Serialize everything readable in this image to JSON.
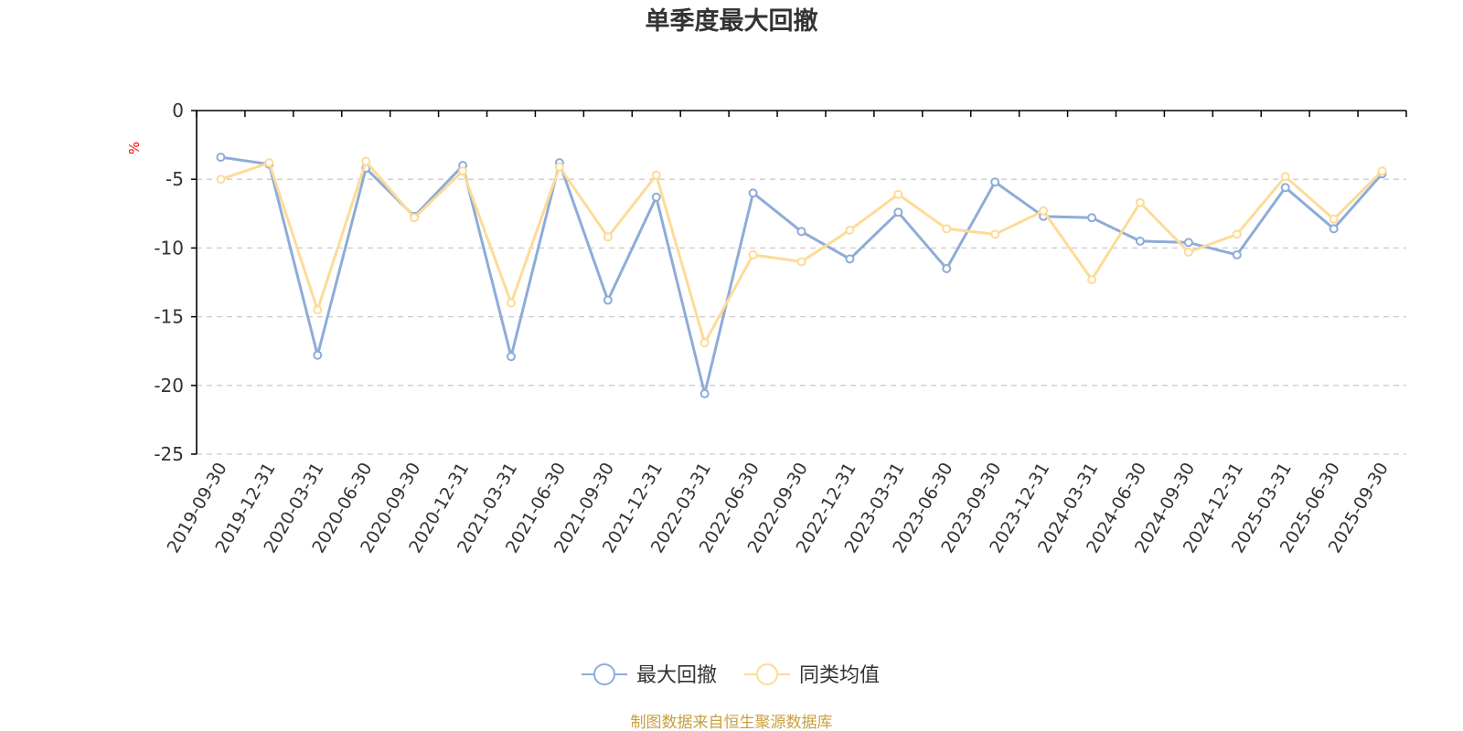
{
  "chart_data": {
    "type": "line",
    "title": "单季度最大回撤",
    "ylabel": "%",
    "ylim": [
      -25,
      0
    ],
    "yticks": [
      0,
      -5,
      -10,
      -15,
      -20,
      -25
    ],
    "grid": true,
    "legend_position": "bottom",
    "categories": [
      "2019-09-30",
      "2019-12-31",
      "2020-03-31",
      "2020-06-30",
      "2020-09-30",
      "2020-12-31",
      "2021-03-31",
      "2021-06-30",
      "2021-09-30",
      "2021-12-31",
      "2022-03-31",
      "2022-06-30",
      "2022-09-30",
      "2022-12-31",
      "2023-03-31",
      "2023-06-30",
      "2023-09-30",
      "2023-12-31",
      "2024-03-31",
      "2024-06-30",
      "2024-09-30",
      "2024-12-31",
      "2025-03-31",
      "2025-06-30",
      "2025-09-30"
    ],
    "series": [
      {
        "name": "最大回撤",
        "color": "#8eacd8",
        "values": [
          -3.4,
          -3.9,
          -17.8,
          -4.2,
          -7.7,
          -4.0,
          -17.9,
          -3.8,
          -13.8,
          -6.3,
          -20.6,
          -6.0,
          -8.8,
          -10.8,
          -7.4,
          -11.5,
          -5.2,
          -7.7,
          -7.8,
          -9.5,
          -9.6,
          -10.5,
          -5.6,
          -8.6,
          -4.6
        ]
      },
      {
        "name": "同类均值",
        "color": "#fddb98",
        "values": [
          -5.0,
          -3.8,
          -14.5,
          -3.7,
          -7.8,
          -4.4,
          -14.0,
          -4.1,
          -9.2,
          -4.7,
          -16.9,
          -10.5,
          -11.0,
          -8.7,
          -6.1,
          -8.6,
          -9.0,
          -7.3,
          -12.3,
          -6.7,
          -10.3,
          -9.0,
          -4.8,
          -7.9,
          -4.4
        ]
      }
    ]
  },
  "colors": {
    "axis": "#000000",
    "grid": "#cccccc",
    "unit": "#ff0000",
    "source": "#c8a040"
  },
  "source_note": "制图数据来自恒生聚源数据库"
}
